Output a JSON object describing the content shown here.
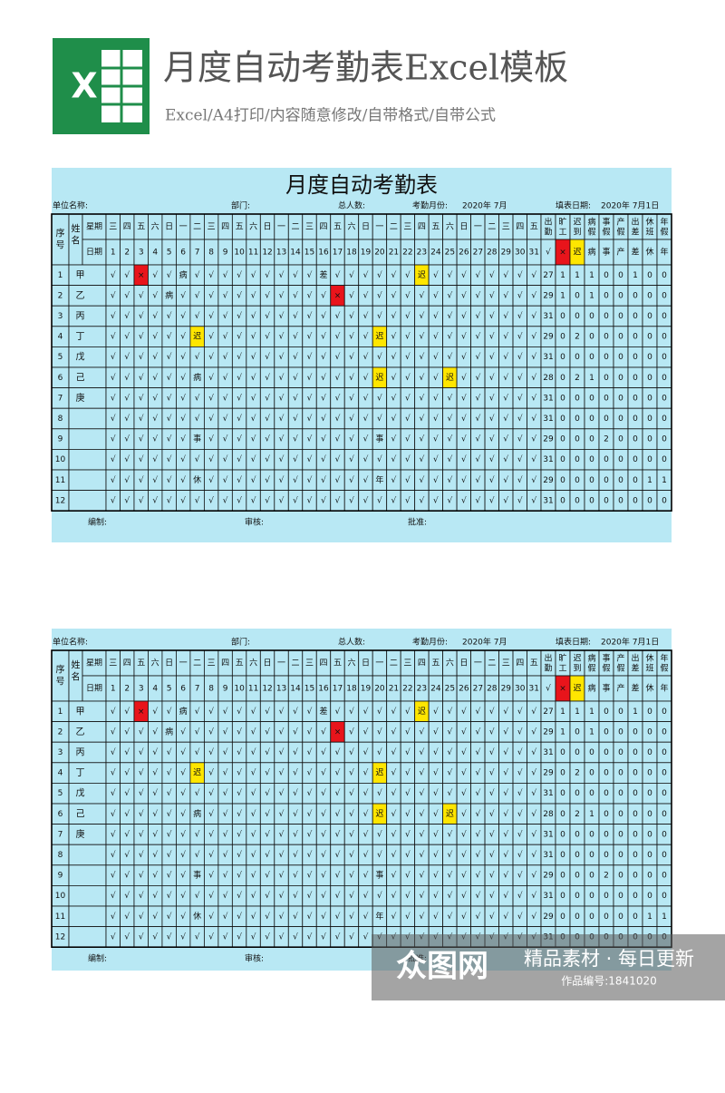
{
  "header": {
    "icon_letter": "X",
    "title": "月度自动考勤表Excel模板",
    "subtitle": "Excel/A4打印/内容随意修改/自带格式/自带公式"
  },
  "sheet": {
    "title": "月度自动考勤表",
    "info": [
      "单位名称:",
      "部门:",
      "总人数:",
      "考勤月份:",
      "2020年 7月",
      "填表日期:",
      "2020年 7月1日"
    ],
    "col_headers": {
      "index": "序号",
      "name": "姓名",
      "weekday_label": "星期",
      "date_label": "日期",
      "weekdays": [
        "三",
        "四",
        "五",
        "六",
        "日",
        "一",
        "二",
        "三",
        "四",
        "五",
        "六",
        "日",
        "一",
        "二",
        "三",
        "四",
        "五",
        "六",
        "日",
        "一",
        "二",
        "三",
        "四",
        "五",
        "六",
        "日",
        "一",
        "二",
        "三",
        "四",
        "五"
      ],
      "dates": [
        1,
        2,
        3,
        4,
        5,
        6,
        7,
        8,
        9,
        10,
        11,
        12,
        13,
        14,
        15,
        16,
        17,
        18,
        19,
        20,
        21,
        22,
        23,
        24,
        25,
        26,
        27,
        28,
        29,
        30,
        31
      ],
      "summary_labels": [
        "出勤",
        "旷工",
        "迟到",
        "病假",
        "事假",
        "产假",
        "出差",
        "休班",
        "年假"
      ],
      "summary_symbols": [
        "√",
        "×",
        "迟",
        "病",
        "事",
        "产",
        "差",
        "休",
        "年"
      ]
    },
    "rows": [
      {
        "index": 1,
        "name": "甲",
        "days": [
          "√",
          "√",
          "×",
          "√",
          "√",
          "病",
          "√",
          "√",
          "√",
          "√",
          "√",
          "√",
          "√",
          "√",
          "√",
          "差",
          "√",
          "√",
          "√",
          "√",
          "√",
          "√",
          "迟",
          "√",
          "√",
          "√",
          "√",
          "√",
          "√",
          "√",
          "√"
        ],
        "summary": [
          27,
          1,
          1,
          1,
          0,
          0,
          1,
          0,
          0
        ]
      },
      {
        "index": 2,
        "name": "乙",
        "days": [
          "√",
          "√",
          "√",
          "√",
          "病",
          "√",
          "√",
          "√",
          "√",
          "√",
          "√",
          "√",
          "√",
          "√",
          "√",
          "√",
          "×",
          "√",
          "√",
          "√",
          "√",
          "√",
          "√",
          "√",
          "√",
          "√",
          "√",
          "√",
          "√",
          "√",
          "√"
        ],
        "summary": [
          29,
          1,
          0,
          1,
          0,
          0,
          0,
          0,
          0
        ]
      },
      {
        "index": 3,
        "name": "丙",
        "days": [
          "√",
          "√",
          "√",
          "√",
          "√",
          "√",
          "√",
          "√",
          "√",
          "√",
          "√",
          "√",
          "√",
          "√",
          "√",
          "√",
          "√",
          "√",
          "√",
          "√",
          "√",
          "√",
          "√",
          "√",
          "√",
          "√",
          "√",
          "√",
          "√",
          "√",
          "√"
        ],
        "summary": [
          31,
          0,
          0,
          0,
          0,
          0,
          0,
          0,
          0
        ]
      },
      {
        "index": 4,
        "name": "丁",
        "days": [
          "√",
          "√",
          "√",
          "√",
          "√",
          "√",
          "迟",
          "√",
          "√",
          "√",
          "√",
          "√",
          "√",
          "√",
          "√",
          "√",
          "√",
          "√",
          "√",
          "迟",
          "√",
          "√",
          "√",
          "√",
          "√",
          "√",
          "√",
          "√",
          "√",
          "√",
          "√"
        ],
        "summary": [
          29,
          0,
          2,
          0,
          0,
          0,
          0,
          0,
          0
        ]
      },
      {
        "index": 5,
        "name": "戊",
        "days": [
          "√",
          "√",
          "√",
          "√",
          "√",
          "√",
          "√",
          "√",
          "√",
          "√",
          "√",
          "√",
          "√",
          "√",
          "√",
          "√",
          "√",
          "√",
          "√",
          "√",
          "√",
          "√",
          "√",
          "√",
          "√",
          "√",
          "√",
          "√",
          "√",
          "√",
          "√"
        ],
        "summary": [
          31,
          0,
          0,
          0,
          0,
          0,
          0,
          0,
          0
        ]
      },
      {
        "index": 6,
        "name": "己",
        "days": [
          "√",
          "√",
          "√",
          "√",
          "√",
          "√",
          "病",
          "√",
          "√",
          "√",
          "√",
          "√",
          "√",
          "√",
          "√",
          "√",
          "√",
          "√",
          "√",
          "迟",
          "√",
          "√",
          "√",
          "√",
          "迟",
          "√",
          "√",
          "√",
          "√",
          "√",
          "√"
        ],
        "summary": [
          28,
          0,
          2,
          1,
          0,
          0,
          0,
          0,
          0
        ]
      },
      {
        "index": 7,
        "name": "庚",
        "days": [
          "√",
          "√",
          "√",
          "√",
          "√",
          "√",
          "√",
          "√",
          "√",
          "√",
          "√",
          "√",
          "√",
          "√",
          "√",
          "√",
          "√",
          "√",
          "√",
          "√",
          "√",
          "√",
          "√",
          "√",
          "√",
          "√",
          "√",
          "√",
          "√",
          "√",
          "√"
        ],
        "summary": [
          31,
          0,
          0,
          0,
          0,
          0,
          0,
          0,
          0
        ]
      },
      {
        "index": 8,
        "name": null,
        "days": [
          "√",
          "√",
          "√",
          "√",
          "√",
          "√",
          "√",
          "√",
          "√",
          "√",
          "√",
          "√",
          "√",
          "√",
          "√",
          "√",
          "√",
          "√",
          "√",
          "√",
          "√",
          "√",
          "√",
          "√",
          "√",
          "√",
          "√",
          "√",
          "√",
          "√",
          "√"
        ],
        "summary": [
          31,
          0,
          0,
          0,
          0,
          0,
          0,
          0,
          0
        ]
      },
      {
        "index": 9,
        "name": null,
        "days": [
          "√",
          "√",
          "√",
          "√",
          "√",
          "√",
          "事",
          "√",
          "√",
          "√",
          "√",
          "√",
          "√",
          "√",
          "√",
          "√",
          "√",
          "√",
          "√",
          "事",
          "√",
          "√",
          "√",
          "√",
          "√",
          "√",
          "√",
          "√",
          "√",
          "√",
          "√"
        ],
        "summary": [
          29,
          0,
          0,
          0,
          2,
          0,
          0,
          0,
          0
        ]
      },
      {
        "index": 10,
        "name": null,
        "days": [
          "√",
          "√",
          "√",
          "√",
          "√",
          "√",
          "√",
          "√",
          "√",
          "√",
          "√",
          "√",
          "√",
          "√",
          "√",
          "√",
          "√",
          "√",
          "√",
          "√",
          "√",
          "√",
          "√",
          "√",
          "√",
          "√",
          "√",
          "√",
          "√",
          "√",
          "√"
        ],
        "summary": [
          31,
          0,
          0,
          0,
          0,
          0,
          0,
          0,
          0
        ]
      },
      {
        "index": 11,
        "name": null,
        "days": [
          "√",
          "√",
          "√",
          "√",
          "√",
          "√",
          "休",
          "√",
          "√",
          "√",
          "√",
          "√",
          "√",
          "√",
          "√",
          "√",
          "√",
          "√",
          "√",
          "年",
          "√",
          "√",
          "√",
          "√",
          "√",
          "√",
          "√",
          "√",
          "√",
          "√",
          "√"
        ],
        "summary": [
          29,
          0,
          0,
          0,
          0,
          0,
          0,
          1,
          1
        ]
      },
      {
        "index": 12,
        "name": null,
        "days": [
          "√",
          "√",
          "√",
          "√",
          "√",
          "√",
          "√",
          "√",
          "√",
          "√",
          "√",
          "√",
          "√",
          "√",
          "√",
          "√",
          "√",
          "√",
          "√",
          "√",
          "√",
          "√",
          "√",
          "√",
          "√",
          "√",
          "√",
          "√",
          "√",
          "√",
          "√"
        ],
        "summary": [
          31,
          0,
          0,
          0,
          0,
          0,
          0,
          0,
          0
        ]
      }
    ],
    "footer": [
      "编制:",
      "审核:",
      "批准:"
    ]
  },
  "watermark": {
    "logo": "众图网",
    "slogan": "精品素材 · 每日更新",
    "code": "作品编号:1841020"
  }
}
